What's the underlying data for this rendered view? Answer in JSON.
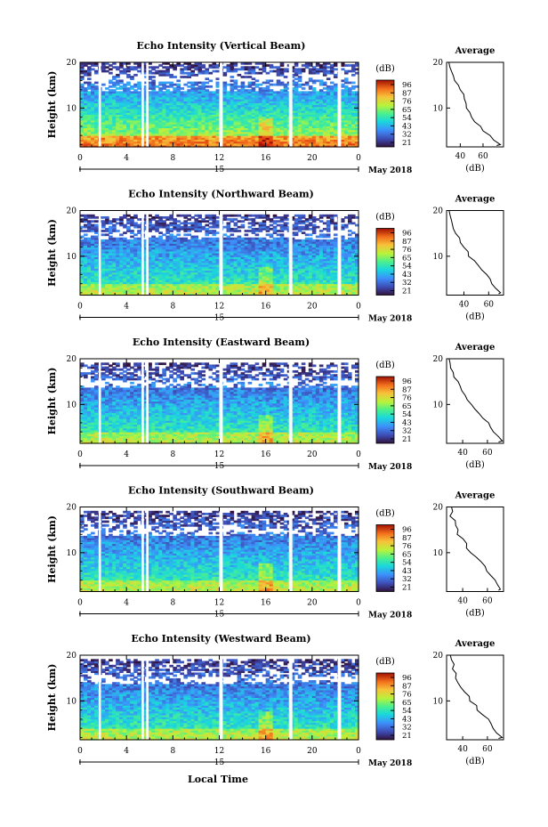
{
  "figure": {
    "x_axis_title": "Local Time",
    "date_label": "May 2018",
    "day_label": "15",
    "colorbar_unit": "(dB)",
    "colorbar_ticks": [
      "96",
      "87",
      "76",
      "65",
      "54",
      "43",
      "32",
      "21"
    ],
    "colorbar_colors": [
      "#30123b",
      "#3e4bb3",
      "#3d8ffb",
      "#1ad7dd",
      "#4bf08c",
      "#b8f23b",
      "#f7c23a",
      "#f2701c",
      "#d11e0b",
      "#7a0403"
    ]
  },
  "chart_data": [
    {
      "type": "heatmap",
      "title": "Echo Intensity (Vertical Beam)",
      "ylabel": "Height (km)",
      "x_ticks": [
        "0",
        "4",
        "8",
        "12",
        "16",
        "20",
        "0"
      ],
      "y_ticks": [
        "20",
        "10"
      ],
      "xlim": [
        0,
        24
      ],
      "ylim": [
        1.5,
        20
      ],
      "top_km": 20,
      "upper_gap": [
        16,
        17.5
      ],
      "intensity": 1.0,
      "data_gaps_hours": [
        [
          1.6,
          1.8
        ],
        [
          5.3,
          5.5
        ],
        [
          5.7,
          5.9
        ],
        [
          12.0,
          12.3
        ],
        [
          18.0,
          18.3
        ],
        [
          22.2,
          22.5
        ]
      ],
      "profile": {
        "title": "Average",
        "xlabel": "(dB)",
        "x_ticks": [
          "40",
          "60"
        ],
        "y_ticks": [
          "20",
          "10"
        ],
        "xlim": [
          28,
          78
        ],
        "points": [
          [
            30,
            20
          ],
          [
            31,
            19
          ],
          [
            32,
            18
          ],
          [
            35,
            17
          ],
          [
            36,
            16
          ],
          [
            38,
            15
          ],
          [
            40,
            14
          ],
          [
            42,
            13
          ],
          [
            43,
            12
          ],
          [
            44,
            11
          ],
          [
            46,
            10
          ],
          [
            48,
            9
          ],
          [
            51,
            8
          ],
          [
            54,
            7
          ],
          [
            57,
            6
          ],
          [
            61,
            5
          ],
          [
            66,
            4
          ],
          [
            70,
            3
          ],
          [
            74,
            2
          ],
          [
            72,
            1.8
          ]
        ]
      }
    },
    {
      "type": "heatmap",
      "title": "Echo Intensity (Northward Beam)",
      "ylabel": "Height (km)",
      "x_ticks": [
        "0",
        "4",
        "8",
        "12",
        "16",
        "20",
        "0"
      ],
      "y_ticks": [
        "20",
        "10"
      ],
      "xlim": [
        0,
        24
      ],
      "ylim": [
        1.5,
        20
      ],
      "top_km": 19,
      "upper_gap": [
        14,
        15.5
      ],
      "intensity": 0.72,
      "data_gaps_hours": [
        [
          1.6,
          1.8
        ],
        [
          5.3,
          5.5
        ],
        [
          5.7,
          5.9
        ],
        [
          12.0,
          12.3
        ],
        [
          18.0,
          18.3
        ],
        [
          22.2,
          22.5
        ]
      ],
      "profile": {
        "title": "Average",
        "xlabel": "(dB)",
        "x_ticks": [
          "40",
          "60"
        ],
        "y_ticks": [
          "20",
          "10"
        ],
        "xlim": [
          26,
          72
        ],
        "points": [
          [
            28,
            20
          ],
          [
            29,
            19
          ],
          [
            30,
            18
          ],
          [
            31,
            17
          ],
          [
            32,
            16
          ],
          [
            34,
            15
          ],
          [
            36,
            14
          ],
          [
            38,
            13
          ],
          [
            41,
            12
          ],
          [
            43,
            11
          ],
          [
            45,
            10
          ],
          [
            48,
            9
          ],
          [
            52,
            8
          ],
          [
            55,
            7
          ],
          [
            59,
            6
          ],
          [
            62,
            5
          ],
          [
            64,
            4
          ],
          [
            67,
            3
          ],
          [
            70,
            2
          ],
          [
            68,
            1.8
          ]
        ]
      }
    },
    {
      "type": "heatmap",
      "title": "Echo Intensity (Eastward Beam)",
      "ylabel": "Height (km)",
      "x_ticks": [
        "0",
        "4",
        "8",
        "12",
        "16",
        "20",
        "0"
      ],
      "y_ticks": [
        "20",
        "10"
      ],
      "xlim": [
        0,
        24
      ],
      "ylim": [
        1.5,
        20
      ],
      "top_km": 19,
      "upper_gap": [
        14,
        15.5
      ],
      "intensity": 0.72,
      "data_gaps_hours": [
        [
          1.6,
          1.8
        ],
        [
          5.3,
          5.5
        ],
        [
          5.7,
          5.9
        ],
        [
          12.0,
          12.3
        ],
        [
          18.0,
          18.3
        ],
        [
          22.2,
          22.5
        ]
      ],
      "profile": {
        "title": "Average",
        "xlabel": "(dB)",
        "x_ticks": [
          "40",
          "60"
        ],
        "y_ticks": [
          "20",
          "10"
        ],
        "xlim": [
          27,
          73
        ],
        "points": [
          [
            29,
            20
          ],
          [
            30,
            19
          ],
          [
            31,
            18
          ],
          [
            32,
            17
          ],
          [
            33,
            16
          ],
          [
            35,
            15
          ],
          [
            37,
            14
          ],
          [
            39,
            13
          ],
          [
            42,
            12
          ],
          [
            44,
            11
          ],
          [
            46,
            10
          ],
          [
            49,
            9
          ],
          [
            53,
            8
          ],
          [
            56,
            7
          ],
          [
            60,
            6
          ],
          [
            63,
            5
          ],
          [
            65,
            4
          ],
          [
            68,
            3
          ],
          [
            71,
            2
          ],
          [
            69,
            1.8
          ]
        ]
      }
    },
    {
      "type": "heatmap",
      "title": "Echo Intensity (Southward Beam)",
      "ylabel": "Height (km)",
      "x_ticks": [
        "0",
        "4",
        "8",
        "12",
        "16",
        "20",
        "0"
      ],
      "y_ticks": [
        "20",
        "10"
      ],
      "xlim": [
        0,
        24
      ],
      "ylim": [
        1.5,
        20
      ],
      "top_km": 19,
      "upper_gap": [
        14,
        15.5
      ],
      "intensity": 0.72,
      "data_gaps_hours": [
        [
          1.6,
          1.8
        ],
        [
          5.3,
          5.5
        ],
        [
          5.7,
          5.9
        ],
        [
          12.0,
          12.3
        ],
        [
          18.0,
          18.3
        ],
        [
          22.2,
          22.5
        ]
      ],
      "profile": {
        "title": "Average",
        "xlabel": "(dB)",
        "x_ticks": [
          "40",
          "60"
        ],
        "y_ticks": [
          "20",
          "10"
        ],
        "xlim": [
          27,
          73
        ],
        "points": [
          [
            31,
            20
          ],
          [
            32,
            19
          ],
          [
            31,
            18
          ],
          [
            33,
            17
          ],
          [
            34,
            16
          ],
          [
            36,
            15
          ],
          [
            37,
            14
          ],
          [
            39,
            13
          ],
          [
            42,
            12
          ],
          [
            44,
            11
          ],
          [
            46,
            10
          ],
          [
            50,
            9
          ],
          [
            54,
            8
          ],
          [
            57,
            7
          ],
          [
            60,
            6
          ],
          [
            63,
            5
          ],
          [
            65,
            4
          ],
          [
            68,
            3
          ],
          [
            71,
            2
          ],
          [
            69,
            1.8
          ]
        ]
      }
    },
    {
      "type": "heatmap",
      "title": "Echo Intensity (Westward Beam)",
      "ylabel": "Height (km)",
      "x_ticks": [
        "0",
        "4",
        "8",
        "12",
        "16",
        "20",
        "0"
      ],
      "y_ticks": [
        "20",
        "10"
      ],
      "xlim": [
        0,
        24
      ],
      "ylim": [
        1.5,
        20
      ],
      "top_km": 19,
      "upper_gap": [
        14,
        15.5
      ],
      "intensity": 0.72,
      "data_gaps_hours": [
        [
          1.6,
          1.8
        ],
        [
          5.3,
          5.5
        ],
        [
          5.7,
          5.9
        ],
        [
          12.0,
          12.3
        ],
        [
          18.0,
          18.3
        ],
        [
          22.2,
          22.5
        ]
      ],
      "profile": {
        "title": "Average",
        "xlabel": "(dB)",
        "x_ticks": [
          "40",
          "60"
        ],
        "y_ticks": [
          "20",
          "10"
        ],
        "xlim": [
          27,
          73
        ],
        "points": [
          [
            30,
            20
          ],
          [
            31,
            19
          ],
          [
            32,
            18
          ],
          [
            33,
            17
          ],
          [
            34,
            16
          ],
          [
            35,
            15
          ],
          [
            37,
            14
          ],
          [
            39,
            13
          ],
          [
            42,
            12
          ],
          [
            44,
            11
          ],
          [
            46,
            10
          ],
          [
            50,
            9
          ],
          [
            53,
            8
          ],
          [
            57,
            7
          ],
          [
            60,
            6
          ],
          [
            63,
            5
          ],
          [
            65,
            4
          ],
          [
            68,
            3
          ],
          [
            71,
            2
          ],
          [
            69,
            1.8
          ]
        ]
      }
    }
  ]
}
